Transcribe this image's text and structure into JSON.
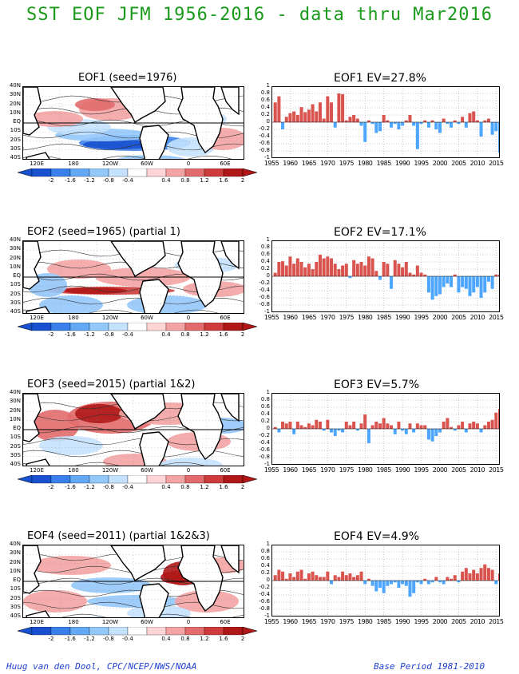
{
  "title": "SST EOF JFM 1956-2016 - data thru Mar2016",
  "footer_left": "Huug van den Dool, CPC/NCEP/NWS/NOAA",
  "footer_right": "Base Period 1981-2010",
  "colors": {
    "title": "#1a9a1a",
    "footer": "#1f3fcf",
    "positive_bar": "#d9534f",
    "negative_bar": "#4da6ff",
    "scale": [
      "#1850d0",
      "#3a80ea",
      "#62a8f5",
      "#93c8fb",
      "#c4e2fd",
      "#ffffff",
      "#ffd4d4",
      "#f3a3a3",
      "#e36b6b",
      "#cf3a3a",
      "#b01717"
    ]
  },
  "lat_labels": [
    "40N",
    "30N",
    "20N",
    "10N",
    "EQ",
    "10S",
    "20S",
    "30S",
    "40S"
  ],
  "lon_labels": [
    "120E",
    "180",
    "120W",
    "60W",
    "0",
    "60E"
  ],
  "colorbar_labels": [
    "-2",
    "-1.6",
    "-1.2",
    "-0.8",
    "-0.4",
    "0.4",
    "0.8",
    "1.2",
    "1.6",
    "2"
  ],
  "bar_ytick_labels": [
    "1",
    "0.8",
    "0.6",
    "0.4",
    "0.2",
    "0",
    "-0.2",
    "-0.4",
    "-0.6",
    "-0.8",
    "-1"
  ],
  "bar_xtick_labels": [
    "1955",
    "1960",
    "1965",
    "1970",
    "1975",
    "1980",
    "1985",
    "1990",
    "1995",
    "2000",
    "2005",
    "2010",
    "2015"
  ],
  "panels": [
    {
      "map_title": "EOF1   (seed=1976)",
      "bar_title": "EOF1  EV=27.8%",
      "map_kind": 1
    },
    {
      "map_title": "EOF2   (seed=1965)  (partial 1)",
      "bar_title": "EOF2  EV=17.1%",
      "map_kind": 2
    },
    {
      "map_title": "EOF3   (seed=2015)  (partial 1&2)",
      "bar_title": "EOF3  EV=5.7%",
      "map_kind": 3
    },
    {
      "map_title": "EOF4   (seed=2011)  (partial 1&2&3)",
      "bar_title": "EOF4  EV=4.9%",
      "map_kind": 4
    }
  ],
  "chart_data": [
    {
      "type": "bar",
      "title": "EOF1  EV=27.8%",
      "ylim": [
        -1,
        1
      ],
      "x_start": 1956,
      "x_end": 2016,
      "values": [
        0.55,
        0.72,
        -0.2,
        0.15,
        0.25,
        0.3,
        0.2,
        0.42,
        0.28,
        0.35,
        0.5,
        0.3,
        0.55,
        0.1,
        0.72,
        0.55,
        -0.15,
        0.8,
        0.78,
        0.05,
        0.15,
        0.2,
        0.1,
        -0.1,
        -0.55,
        0.05,
        -0.05,
        -0.3,
        -0.25,
        0.2,
        0.05,
        -0.15,
        -0.05,
        -0.2,
        -0.1,
        0.05,
        0.2,
        -0.1,
        -0.75,
        -0.05,
        0.05,
        -0.15,
        0.05,
        -0.2,
        -0.3,
        0.1,
        -0.05,
        -0.15,
        0.05,
        -0.05,
        0.15,
        -0.15,
        0.25,
        0.3,
        0.05,
        -0.4,
        0.05,
        0.1,
        -0.35,
        -0.25,
        -0.85
      ]
    },
    {
      "type": "bar",
      "title": "EOF2  EV=17.1%",
      "ylim": [
        -1,
        1
      ],
      "x_start": 1956,
      "x_end": 2016,
      "values": [
        0.1,
        0.4,
        0.42,
        0.3,
        0.55,
        0.35,
        0.5,
        0.4,
        0.25,
        0.35,
        0.2,
        0.4,
        0.6,
        0.5,
        0.55,
        0.5,
        0.35,
        0.2,
        0.3,
        0.35,
        -0.05,
        0.45,
        0.35,
        0.4,
        0.3,
        0.55,
        0.5,
        0.15,
        -0.1,
        0.4,
        0.35,
        -0.35,
        0.45,
        0.35,
        0.25,
        0.4,
        0.1,
        0.05,
        0.3,
        0.1,
        0.05,
        -0.45,
        -0.65,
        -0.55,
        -0.5,
        -0.3,
        -0.2,
        -0.3,
        0.05,
        -0.45,
        -0.3,
        -0.35,
        -0.55,
        -0.45,
        -0.3,
        -0.6,
        -0.45,
        -0.15,
        -0.35,
        0.05,
        0.05
      ]
    },
    {
      "type": "bar",
      "title": "EOF3  EV=5.7%",
      "ylim": [
        -1,
        1
      ],
      "x_start": 1956,
      "x_end": 2016,
      "values": [
        0.05,
        -0.1,
        0.2,
        0.15,
        0.2,
        -0.15,
        0.2,
        0.1,
        0.05,
        0.15,
        0.1,
        0.25,
        0.2,
        -0.05,
        0.25,
        -0.1,
        -0.2,
        -0.05,
        -0.1,
        0.2,
        0.1,
        0.2,
        -0.05,
        0.15,
        0.4,
        -0.4,
        0.1,
        0.2,
        0.15,
        0.3,
        0.15,
        0.1,
        -0.15,
        0.2,
        -0.05,
        -0.15,
        0.15,
        -0.1,
        0.15,
        0.1,
        0.1,
        -0.3,
        -0.35,
        -0.2,
        -0.1,
        0.2,
        0.3,
        0.05,
        -0.05,
        0.1,
        0.2,
        -0.1,
        0.15,
        0.2,
        0.15,
        -0.1,
        0.1,
        0.2,
        0.25,
        0.45,
        0.55
      ]
    },
    {
      "type": "bar",
      "title": "EOF4  EV=4.9%",
      "ylim": [
        -1,
        1
      ],
      "x_start": 1956,
      "x_end": 2016,
      "values": [
        0.15,
        0.3,
        0.25,
        0.05,
        0.2,
        0.1,
        0.25,
        0.3,
        0.05,
        0.2,
        0.25,
        0.15,
        0.1,
        0.1,
        0.25,
        -0.1,
        0.15,
        0.1,
        0.25,
        0.15,
        0.2,
        0.1,
        0.15,
        0.25,
        -0.1,
        0.05,
        -0.15,
        -0.3,
        -0.2,
        -0.35,
        -0.15,
        -0.1,
        -0.05,
        -0.2,
        -0.1,
        -0.15,
        -0.45,
        -0.35,
        -0.05,
        -0.1,
        0.05,
        -0.1,
        -0.05,
        0.1,
        -0.05,
        -0.1,
        0.1,
        0.05,
        0.15,
        -0.05,
        0.25,
        0.35,
        0.2,
        0.3,
        0.2,
        0.35,
        0.45,
        0.35,
        0.3,
        -0.1,
        0.2
      ]
    }
  ]
}
